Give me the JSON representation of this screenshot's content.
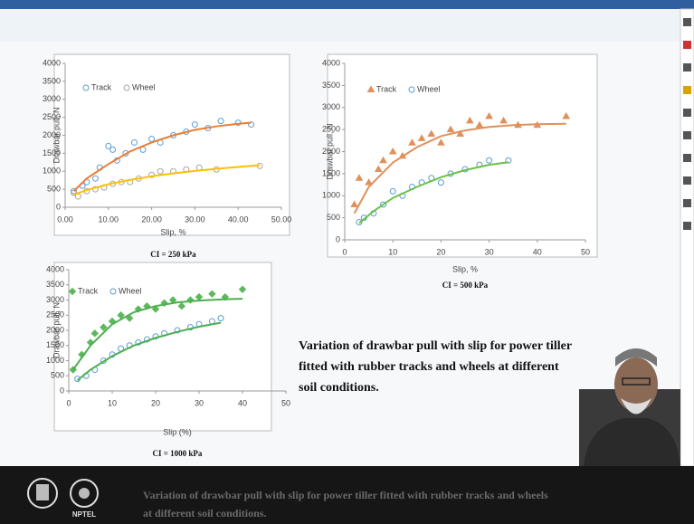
{
  "chart_data": [
    {
      "type": "scatter",
      "xlabel": "Slip, %",
      "ylabel": "Drawbar pull, N",
      "caption": "CI = 250 kPa",
      "xlim": [
        0,
        50
      ],
      "ylim": [
        0,
        4000
      ],
      "xticks": [
        {
          "value": 0,
          "label": "0.00"
        },
        {
          "value": 10,
          "label": "10.00"
        },
        {
          "value": 20,
          "label": "20.00"
        },
        {
          "value": 30,
          "label": "30.00"
        },
        {
          "value": 40,
          "label": "40.00"
        },
        {
          "value": 50,
          "label": "50.00"
        }
      ],
      "yticks": [
        0,
        500,
        1000,
        1500,
        2000,
        2500,
        3000,
        3500,
        4000
      ],
      "legend": "upper left",
      "series": [
        {
          "name": "Track",
          "color": "#5b9bd5",
          "marker": "circle",
          "x": [
            2,
            4,
            5,
            7,
            8,
            10,
            11,
            12,
            14,
            16,
            18,
            20,
            22,
            25,
            28,
            30,
            33,
            36,
            40,
            43
          ],
          "values": [
            450,
            600,
            700,
            800,
            1100,
            1700,
            1600,
            1300,
            1500,
            1800,
            1600,
            1900,
            1800,
            2000,
            2100,
            2300,
            2200,
            2400,
            2350,
            2300
          ]
        },
        {
          "name": "Wheel",
          "color": "#a6a6a6",
          "marker": "circle",
          "x": [
            2,
            3,
            5,
            7,
            9,
            11,
            13,
            15,
            17,
            20,
            22,
            25,
            28,
            31,
            35,
            45
          ],
          "values": [
            400,
            300,
            450,
            500,
            550,
            650,
            700,
            700,
            800,
            900,
            1000,
            1000,
            1050,
            1100,
            1050,
            1150
          ]
        },
        {
          "color": "#ed7d31",
          "marker": "line",
          "x": [
            2,
            5,
            10,
            15,
            20,
            25,
            30,
            35,
            40,
            43
          ],
          "values": [
            450,
            800,
            1200,
            1550,
            1800,
            2000,
            2150,
            2250,
            2320,
            2350
          ]
        },
        {
          "color": "#ffc000",
          "marker": "line",
          "x": [
            2,
            5,
            10,
            15,
            20,
            25,
            30,
            35,
            40,
            45
          ],
          "values": [
            350,
            480,
            640,
            760,
            860,
            940,
            1010,
            1070,
            1120,
            1170
          ]
        }
      ]
    },
    {
      "type": "scatter",
      "xlabel": "Slip, %",
      "ylabel": "Drawbar pull, N",
      "caption": "CI = 500 kPa",
      "xlim": [
        0,
        50
      ],
      "ylim": [
        0,
        4000
      ],
      "xticks": [
        0,
        10,
        20,
        30,
        40,
        50
      ],
      "yticks": [
        0,
        500,
        1000,
        1500,
        2000,
        2500,
        3000,
        3500,
        4000
      ],
      "legend": "upper left",
      "series": [
        {
          "name": "Track",
          "color": "#e0905a",
          "marker": "triangle",
          "x": [
            2,
            3,
            5,
            7,
            8,
            10,
            12,
            14,
            16,
            18,
            20,
            22,
            24,
            26,
            28,
            30,
            33,
            36,
            40,
            46
          ],
          "values": [
            800,
            1400,
            1300,
            1600,
            1800,
            2000,
            1900,
            2200,
            2300,
            2400,
            2200,
            2500,
            2400,
            2700,
            2600,
            2800,
            2700,
            2600,
            2600,
            2800
          ]
        },
        {
          "name": "Wheel",
          "color": "#5b9bd5",
          "marker": "circle",
          "x": [
            3,
            4,
            6,
            8,
            10,
            12,
            14,
            16,
            18,
            20,
            22,
            25,
            28,
            30,
            34
          ],
          "values": [
            400,
            500,
            600,
            800,
            1100,
            1000,
            1200,
            1300,
            1400,
            1300,
            1500,
            1600,
            1700,
            1800,
            1800
          ]
        },
        {
          "color": "#e0905a",
          "marker": "line",
          "x": [
            2,
            5,
            10,
            15,
            20,
            25,
            30,
            35,
            40,
            46
          ],
          "values": [
            600,
            1200,
            1750,
            2100,
            2350,
            2480,
            2560,
            2600,
            2620,
            2630
          ]
        },
        {
          "color": "#6cc04a",
          "marker": "line",
          "x": [
            3,
            6,
            10,
            15,
            20,
            25,
            30,
            34
          ],
          "values": [
            380,
            650,
            950,
            1200,
            1420,
            1580,
            1700,
            1760
          ]
        }
      ]
    },
    {
      "type": "scatter",
      "xlabel": "Slip (%)",
      "ylabel": "Drawbar pull, N",
      "caption": "CI = 1000 kPa",
      "xlim": [
        0,
        50
      ],
      "ylim": [
        0,
        4000
      ],
      "xticks": [
        0,
        10,
        20,
        30,
        40,
        50
      ],
      "yticks": [
        0,
        500,
        1000,
        1500,
        2000,
        2500,
        3000,
        3500,
        4000
      ],
      "legend": "upper left",
      "series": [
        {
          "name": "Track",
          "color": "#5cb85c",
          "marker": "diamond",
          "x": [
            1,
            3,
            5,
            6,
            8,
            10,
            12,
            14,
            16,
            18,
            20,
            22,
            24,
            26,
            28,
            30,
            33,
            36,
            40
          ],
          "values": [
            700,
            1200,
            1600,
            1900,
            2100,
            2300,
            2500,
            2400,
            2700,
            2800,
            2700,
            2900,
            3000,
            2800,
            3000,
            3100,
            3200,
            3100,
            3350
          ]
        },
        {
          "name": "Wheel",
          "color": "#5b9bd5",
          "marker": "circle",
          "x": [
            2,
            4,
            6,
            8,
            10,
            12,
            14,
            16,
            18,
            20,
            22,
            25,
            28,
            30,
            33,
            35
          ],
          "values": [
            400,
            500,
            700,
            1000,
            1200,
            1400,
            1500,
            1600,
            1700,
            1800,
            1900,
            2000,
            2100,
            2200,
            2300,
            2400
          ]
        },
        {
          "color": "#4caf50",
          "marker": "line",
          "x": [
            1,
            5,
            10,
            15,
            20,
            25,
            30,
            35,
            40
          ],
          "values": [
            700,
            1500,
            2200,
            2600,
            2800,
            2920,
            2980,
            3020,
            3040
          ]
        },
        {
          "color": "#4caf50",
          "marker": "line",
          "x": [
            2,
            5,
            10,
            15,
            20,
            25,
            30,
            35
          ],
          "values": [
            350,
            700,
            1150,
            1500,
            1750,
            1950,
            2120,
            2250
          ]
        }
      ]
    }
  ],
  "slide_caption": [
    "Variation of drawbar pull with slip for power tiller",
    "fitted with rubber tracks and wheels  at different",
    "soil conditions."
  ],
  "footer_text": [
    "Variation of drawbar pull with slip for power tiller fitted with rubber tracks and wheels",
    "at different soil conditions."
  ],
  "logo_label": "NPTEL"
}
